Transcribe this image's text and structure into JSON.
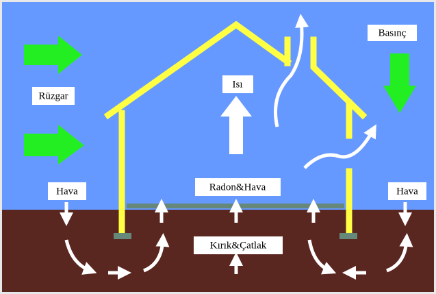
{
  "labels": {
    "wind": "Rüzgar",
    "pressure": "Basınç",
    "heat": "Isı",
    "radon_air": "Radon&Hava",
    "cracks": "Kırık&Çatlak",
    "air_left": "Hava",
    "air_right": "Hava"
  }
}
